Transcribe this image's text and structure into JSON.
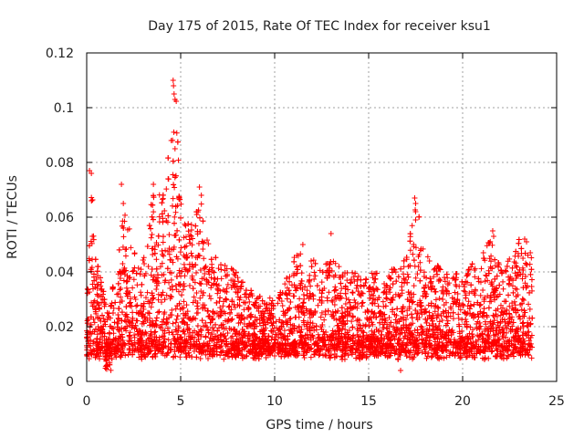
{
  "chart_data": {
    "type": "scatter",
    "title": "Day 175 of 2015, Rate Of TEC Index for receiver ksu1",
    "xlabel": "GPS time / hours",
    "ylabel": "ROTI / TECUs",
    "xlim": [
      0,
      25
    ],
    "ylim": [
      0,
      0.12
    ],
    "x_ticks": [
      "0",
      "5",
      "10",
      "15",
      "20",
      "25"
    ],
    "x_tick_values": [
      0,
      5,
      10,
      15,
      20,
      25
    ],
    "y_ticks": [
      "0",
      "0.02",
      "0.04",
      "0.06",
      "0.08",
      "0.1",
      "0.12"
    ],
    "y_tick_values": [
      0,
      0.02,
      0.04,
      0.06,
      0.08,
      0.1,
      0.12
    ],
    "grid": true,
    "marker": "+",
    "color": "#ff0000",
    "envelope": {
      "note": "Approximate upper envelope of the dense point cloud (hours, TECU/s)",
      "x": [
        0.0,
        0.25,
        0.5,
        1.0,
        1.5,
        2.0,
        2.5,
        3.0,
        3.5,
        4.0,
        4.5,
        4.75,
        5.0,
        5.5,
        6.0,
        6.5,
        7.0,
        8.0,
        9.0,
        10.0,
        11.0,
        11.5,
        12.0,
        13.0,
        14.0,
        15.0,
        16.0,
        17.0,
        17.5,
        18.0,
        19.0,
        20.0,
        21.0,
        21.5,
        22.0,
        22.5,
        23.0,
        23.7
      ],
      "y": [
        0.03,
        0.076,
        0.046,
        0.03,
        0.036,
        0.065,
        0.048,
        0.045,
        0.068,
        0.075,
        0.085,
        0.108,
        0.065,
        0.06,
        0.07,
        0.05,
        0.046,
        0.04,
        0.032,
        0.03,
        0.046,
        0.05,
        0.046,
        0.045,
        0.04,
        0.04,
        0.04,
        0.045,
        0.067,
        0.048,
        0.04,
        0.04,
        0.046,
        0.055,
        0.042,
        0.045,
        0.052,
        0.045
      ]
    },
    "notable_points": [
      {
        "x": 0.15,
        "y": 0.077
      },
      {
        "x": 0.25,
        "y": 0.076
      },
      {
        "x": 0.3,
        "y": 0.053
      },
      {
        "x": 1.85,
        "y": 0.072
      },
      {
        "x": 1.95,
        "y": 0.065
      },
      {
        "x": 3.55,
        "y": 0.072
      },
      {
        "x": 4.5,
        "y": 0.088
      },
      {
        "x": 4.6,
        "y": 0.11
      },
      {
        "x": 4.62,
        "y": 0.108
      },
      {
        "x": 4.65,
        "y": 0.105
      },
      {
        "x": 4.7,
        "y": 0.103
      },
      {
        "x": 4.7,
        "y": 0.085
      },
      {
        "x": 6.0,
        "y": 0.071
      },
      {
        "x": 6.1,
        "y": 0.068
      },
      {
        "x": 11.5,
        "y": 0.05
      },
      {
        "x": 13.0,
        "y": 0.054
      },
      {
        "x": 15.4,
        "y": 0.034
      },
      {
        "x": 16.7,
        "y": 0.004
      },
      {
        "x": 17.45,
        "y": 0.067
      },
      {
        "x": 17.5,
        "y": 0.065
      },
      {
        "x": 17.5,
        "y": 0.062
      },
      {
        "x": 17.5,
        "y": 0.059
      },
      {
        "x": 21.6,
        "y": 0.055
      },
      {
        "x": 21.65,
        "y": 0.053
      },
      {
        "x": 23.3,
        "y": 0.052
      },
      {
        "x": 23.4,
        "y": 0.051
      },
      {
        "x": 23.6,
        "y": 0.047
      }
    ]
  }
}
